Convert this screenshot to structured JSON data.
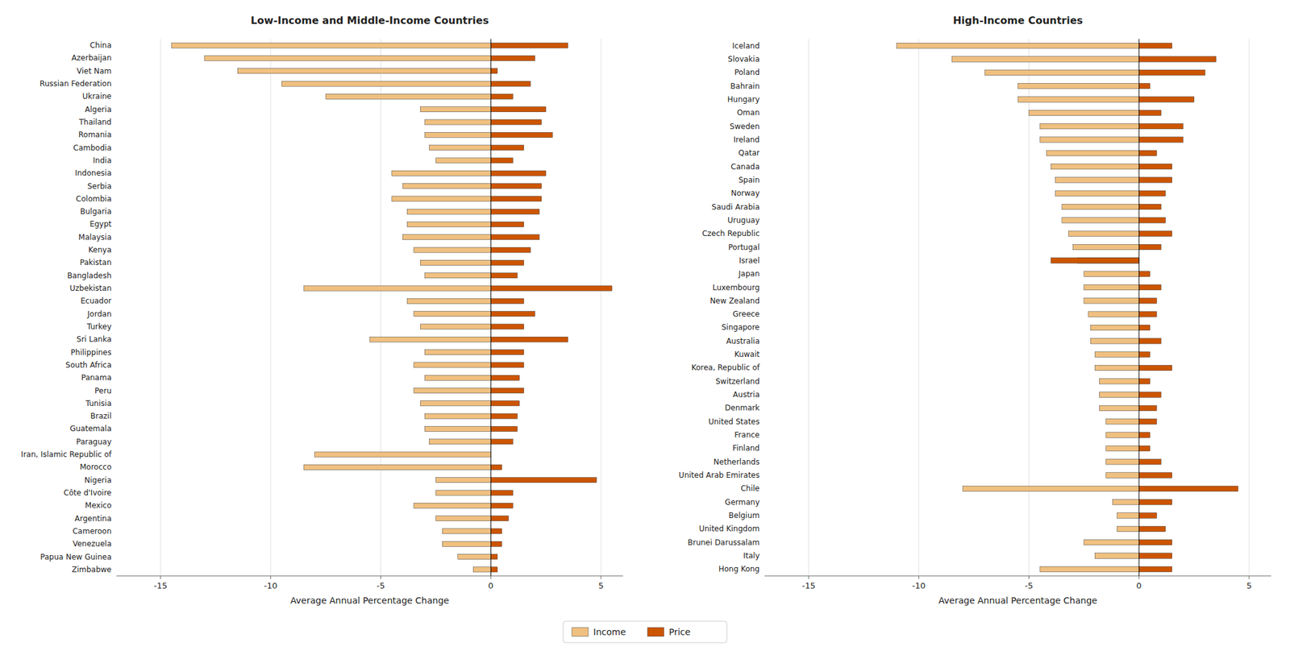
{
  "chart_data": [
    {
      "type": "bar",
      "orientation": "horizontal",
      "title": "Low-Income and Middle-Income Countries",
      "xlabel": "Average Annual Percentage Change",
      "categories": [
        "China",
        "Azerbaijan",
        "Viet Nam",
        "Russian Federation",
        "Ukraine",
        "Algeria",
        "Thailand",
        "Romania",
        "Cambodia",
        "India",
        "Indonesia",
        "Serbia",
        "Colombia",
        "Bulgaria",
        "Egypt",
        "Malaysia",
        "Kenya",
        "Pakistan",
        "Bangladesh",
        "Uzbekistan",
        "Ecuador",
        "Jordan",
        "Turkey",
        "Sri Lanka",
        "Philippines",
        "South Africa",
        "Panama",
        "Peru",
        "Tunisia",
        "Brazil",
        "Guatemala",
        "Paraguay",
        "Iran, Islamic Republic of",
        "Morocco",
        "Nigeria",
        "Côte d'Ivoire",
        "Mexico",
        "Argentina",
        "Cameroon",
        "Venezuela",
        "Papua New Guinea",
        "Zimbabwe"
      ],
      "series": [
        {
          "name": "Income",
          "color": "#f0c080",
          "values": [
            -14.5,
            -13.0,
            -11.5,
            -9.5,
            -7.5,
            -3.2,
            -3.0,
            -3.0,
            -2.8,
            -2.5,
            -4.5,
            -4.0,
            -4.5,
            -3.8,
            -3.8,
            -4.0,
            -3.5,
            -3.2,
            -3.0,
            -8.5,
            -3.8,
            -3.5,
            -3.2,
            -5.5,
            -3.0,
            -3.5,
            -3.0,
            -3.5,
            -3.2,
            -3.0,
            -3.0,
            -2.8,
            -8.0,
            -8.5,
            -2.5,
            -2.5,
            -3.5,
            -2.5,
            -2.2,
            -2.2,
            -1.5,
            -0.8
          ]
        },
        {
          "name": "Price",
          "color": "#cc5500",
          "values": [
            3.5,
            2.0,
            0.3,
            1.8,
            1.0,
            2.5,
            2.3,
            2.8,
            1.5,
            1.0,
            2.5,
            2.3,
            2.3,
            2.2,
            1.5,
            2.2,
            1.8,
            1.5,
            1.2,
            5.5,
            1.5,
            2.0,
            1.5,
            3.5,
            1.5,
            1.5,
            1.3,
            1.5,
            1.3,
            1.2,
            1.2,
            1.0,
            0.0,
            0.5,
            4.8,
            1.0,
            1.0,
            0.8,
            0.5,
            0.5,
            0.3,
            0.3
          ]
        }
      ],
      "xlim": [
        -17,
        6
      ],
      "xticks": [
        -15,
        -10,
        -5,
        0,
        5
      ],
      "grid": true,
      "legend": "bottom"
    },
    {
      "type": "bar",
      "orientation": "horizontal",
      "title": "High-Income Countries",
      "xlabel": "Average Annual Percentage Change",
      "categories": [
        "Iceland",
        "Slovakia",
        "Poland",
        "Bahrain",
        "Hungary",
        "Oman",
        "Sweden",
        "Ireland",
        "Qatar",
        "Canada",
        "Spain",
        "Norway",
        "Saudi Arabia",
        "Uruguay",
        "Czech Republic",
        "Portugal",
        "Israel",
        "Japan",
        "Luxembourg",
        "New Zealand",
        "Greece",
        "Singapore",
        "Australia",
        "Kuwait",
        "Korea, Republic of",
        "Switzerland",
        "Austria",
        "Denmark",
        "United States",
        "France",
        "Finland",
        "Netherlands",
        "United Arab Emirates",
        "Chile",
        "Germany",
        "Belgium",
        "United Kingdom",
        "Brunei Darussalam",
        "Italy",
        "Hong Kong"
      ],
      "series": [
        {
          "name": "Income",
          "color": "#f0c080",
          "values": [
            -11.0,
            -8.5,
            -7.0,
            -5.5,
            -5.5,
            -5.0,
            -4.5,
            -4.5,
            -4.2,
            -4.0,
            -3.8,
            -3.8,
            -3.5,
            -3.5,
            -3.2,
            -3.0,
            -2.8,
            -2.5,
            -2.5,
            -2.5,
            -2.3,
            -2.2,
            -2.2,
            -2.0,
            -2.0,
            -1.8,
            -1.8,
            -1.8,
            -1.5,
            -1.5,
            -1.5,
            -1.5,
            -1.5,
            -8.0,
            -1.2,
            -1.0,
            -1.0,
            -2.5,
            -2.0,
            -4.5
          ]
        },
        {
          "name": "Price",
          "color": "#cc5500",
          "values": [
            1.5,
            3.5,
            3.0,
            0.5,
            2.5,
            1.0,
            2.0,
            2.0,
            0.8,
            1.5,
            1.5,
            1.2,
            1.0,
            1.2,
            1.5,
            1.0,
            -4.0,
            0.5,
            1.0,
            0.8,
            0.8,
            0.5,
            1.0,
            0.5,
            1.5,
            0.5,
            1.0,
            0.8,
            0.8,
            0.5,
            0.5,
            1.0,
            1.5,
            4.5,
            1.5,
            0.8,
            1.2,
            1.5,
            1.5,
            1.5
          ]
        }
      ],
      "xlim": [
        -17,
        6
      ],
      "xticks": [
        -15,
        -10,
        -5,
        0,
        5
      ],
      "grid": true
    }
  ]
}
